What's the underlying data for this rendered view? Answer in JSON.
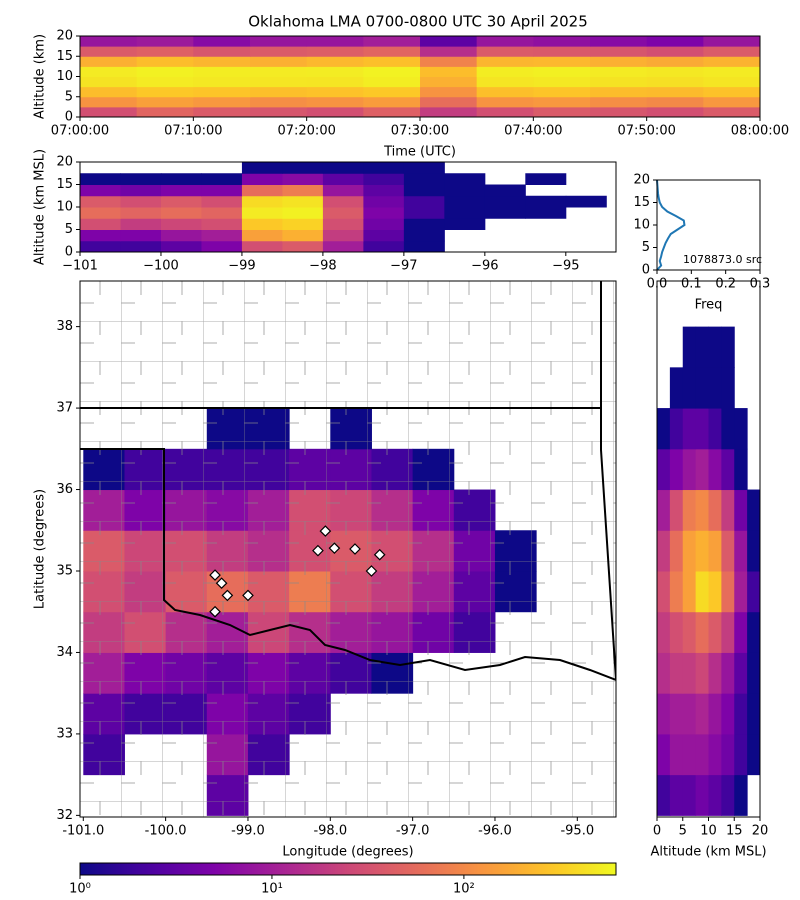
{
  "chart_data": [
    {
      "type": "heatmap",
      "title": "Oklahoma LMA 0700-0800 UTC 30 April 2025",
      "xlabel": "Time (UTC)",
      "ylabel": "Altitude (km)",
      "xlim": [
        "2025-04-30T07:00:00Z",
        "2025-04-30T08:00:00Z"
      ],
      "xticks": [
        {
          "value": "2025-04-30T07:00:00Z",
          "label": "07:00:00"
        },
        {
          "value": "2025-04-30T07:10:00Z",
          "label": "07:10:00"
        },
        {
          "value": "2025-04-30T07:20:00Z",
          "label": "07:20:00"
        },
        {
          "value": "2025-04-30T07:30:00Z",
          "label": "07:30:00"
        },
        {
          "value": "2025-04-30T07:40:00Z",
          "label": "07:40:00"
        },
        {
          "value": "2025-04-30T07:50:00Z",
          "label": "07:50:00"
        },
        {
          "value": "2025-04-30T08:00:00Z",
          "label": "08:00:00"
        }
      ],
      "ylim": [
        0,
        20
      ],
      "yticks": [
        0,
        5,
        10,
        15,
        20
      ],
      "xbins": [
        "2025-04-30T07:00:00Z",
        "2025-04-30T07:05:00Z",
        "2025-04-30T07:10:00Z",
        "2025-04-30T07:15:00Z",
        "2025-04-30T07:20:00Z",
        "2025-04-30T07:25:00Z",
        "2025-04-30T07:30:00Z",
        "2025-04-30T07:35:00Z",
        "2025-04-30T07:40:00Z",
        "2025-04-30T07:45:00Z",
        "2025-04-30T07:50:00Z",
        "2025-04-30T07:55:00Z",
        "2025-04-30T08:00:00Z"
      ],
      "ybins": [
        0,
        2.5,
        5,
        7.5,
        10,
        12.5,
        15,
        17.5,
        20
      ],
      "values": [
        [
          30,
          50,
          40,
          35,
          30,
          45,
          20,
          30,
          40,
          35,
          30,
          40
        ],
        [
          120,
          150,
          130,
          110,
          120,
          140,
          60,
          120,
          130,
          110,
          100,
          130
        ],
        [
          250,
          300,
          280,
          260,
          270,
          300,
          120,
          260,
          280,
          250,
          240,
          270
        ],
        [
          450,
          500,
          480,
          470,
          460,
          520,
          200,
          460,
          480,
          450,
          430,
          460
        ],
        [
          500,
          550,
          520,
          500,
          510,
          560,
          250,
          520,
          540,
          500,
          480,
          500
        ],
        [
          200,
          250,
          220,
          200,
          230,
          260,
          90,
          220,
          230,
          200,
          180,
          210
        ],
        [
          40,
          45,
          35,
          40,
          42,
          50,
          15,
          40,
          38,
          35,
          30,
          40
        ],
        [
          8,
          9,
          6,
          8,
          8,
          10,
          3,
          8,
          7,
          6,
          5,
          8
        ]
      ]
    },
    {
      "type": "heatmap",
      "ylabel": "Altitude (km MSL)",
      "xlim": [
        -101,
        -94.38
      ],
      "xticks": [
        {
          "value": -101,
          "label": "−101"
        },
        {
          "value": -100,
          "label": "−100"
        },
        {
          "value": -99,
          "label": "−99"
        },
        {
          "value": -98,
          "label": "−98"
        },
        {
          "value": -97,
          "label": "−97"
        },
        {
          "value": -96,
          "label": "−96"
        },
        {
          "value": -95,
          "label": "−95"
        }
      ],
      "ylim": [
        0,
        20
      ],
      "yticks": [
        0,
        5,
        10,
        15,
        20
      ],
      "xbins": [
        -101,
        -100.5,
        -100,
        -99.5,
        -99,
        -98.5,
        -98,
        -97.5,
        -97,
        -96.5,
        -96,
        -95.5,
        -95,
        -94.5
      ],
      "ybins": [
        0,
        2.5,
        5,
        7.5,
        10,
        12.5,
        15,
        17.5,
        20
      ],
      "values": [
        [
          2,
          2,
          3,
          5,
          30,
          40,
          10,
          2,
          1,
          null,
          null,
          null,
          null
        ],
        [
          5,
          5,
          8,
          10,
          150,
          200,
          20,
          3,
          1,
          null,
          null,
          null,
          null
        ],
        [
          30,
          20,
          25,
          30,
          300,
          350,
          30,
          4,
          1,
          1,
          null,
          null,
          null
        ],
        [
          60,
          50,
          60,
          50,
          500,
          550,
          40,
          5,
          2,
          1,
          1,
          1,
          null
        ],
        [
          40,
          30,
          40,
          30,
          400,
          450,
          30,
          4,
          2,
          1,
          1,
          1,
          1
        ],
        [
          5,
          4,
          5,
          5,
          60,
          80,
          8,
          3,
          1,
          1,
          1,
          null,
          null
        ],
        [
          1,
          1,
          1,
          1,
          5,
          6,
          3,
          2,
          1,
          1,
          null,
          1,
          null
        ],
        [
          null,
          null,
          null,
          null,
          1,
          1,
          1,
          1,
          1,
          null,
          null,
          null,
          null
        ]
      ]
    },
    {
      "type": "line",
      "xlabel": "Freq",
      "annotation": "1078873.0 src",
      "xlim": [
        0,
        0.3
      ],
      "xticks": [
        {
          "value": 0,
          "label": "0.0"
        },
        0.1,
        0.2,
        0.3
      ],
      "ylim": [
        0,
        20
      ],
      "yticks": [
        0,
        5,
        10,
        15,
        20
      ],
      "series": [
        {
          "color": "#1f77b4",
          "y": [
            0,
            1,
            2,
            3,
            4,
            5,
            6,
            7,
            8,
            9,
            10,
            11,
            12,
            13,
            14,
            15,
            16,
            17,
            18,
            19,
            20
          ],
          "values": [
            0.0,
            0.012,
            0.008,
            0.012,
            0.015,
            0.02,
            0.025,
            0.032,
            0.04,
            0.06,
            0.08,
            0.078,
            0.055,
            0.03,
            0.015,
            0.008,
            0.005,
            0.003,
            0.002,
            0.001,
            0.0
          ]
        }
      ]
    },
    {
      "type": "heatmap",
      "xlabel": "Longitude (degrees)",
      "ylabel": "Latitude (degrees)",
      "xlim": [
        -101.04,
        -94.53
      ],
      "xticks": [
        {
          "value": -101,
          "label": "-101.0"
        },
        {
          "value": -100,
          "label": "-100.0"
        },
        {
          "value": -99,
          "label": "-99.0"
        },
        {
          "value": -98,
          "label": "-98.0"
        },
        {
          "value": -97,
          "label": "-97.0"
        },
        {
          "value": -96,
          "label": "-96.0"
        },
        {
          "value": -95,
          "label": "-95.0"
        }
      ],
      "ylim": [
        31.98,
        38.56
      ],
      "yticks": [
        32,
        33,
        34,
        35,
        36,
        37,
        38
      ],
      "xbins": [
        -101,
        -100.5,
        -100,
        -99.5,
        -99,
        -98.5,
        -98,
        -97.5,
        -97,
        -96.5,
        -96,
        -95.5,
        -95,
        -94.5
      ],
      "ybins": [
        32,
        32.5,
        33,
        33.5,
        34,
        34.5,
        35,
        35.5,
        36,
        36.5,
        37,
        37.5,
        38,
        38.5
      ],
      "values": [
        [
          null,
          null,
          null,
          3,
          null,
          null,
          null,
          null,
          null,
          null,
          null,
          null,
          null
        ],
        [
          2,
          null,
          null,
          8,
          2,
          null,
          null,
          null,
          null,
          null,
          null,
          null,
          null
        ],
        [
          3,
          2,
          2,
          5,
          3,
          2,
          null,
          null,
          null,
          null,
          null,
          null,
          null
        ],
        [
          10,
          5,
          4,
          3,
          5,
          3,
          2,
          1,
          null,
          null,
          null,
          null,
          null
        ],
        [
          20,
          30,
          15,
          10,
          25,
          15,
          10,
          8,
          4,
          2,
          null,
          null,
          null
        ],
        [
          30,
          20,
          40,
          60,
          40,
          80,
          30,
          20,
          10,
          3,
          1,
          null,
          null
        ],
        [
          40,
          25,
          30,
          20,
          15,
          30,
          40,
          30,
          15,
          4,
          1,
          null,
          null
        ],
        [
          10,
          5,
          8,
          6,
          10,
          30,
          25,
          15,
          5,
          2,
          null,
          null,
          null
        ],
        [
          1,
          2,
          2,
          2,
          2,
          3,
          3,
          2,
          1,
          null,
          null,
          null,
          null
        ],
        [
          null,
          null,
          null,
          1,
          1,
          null,
          1,
          null,
          null,
          null,
          null,
          null,
          null
        ],
        [
          null,
          null,
          null,
          null,
          null,
          null,
          null,
          null,
          null,
          null,
          null,
          null,
          null
        ],
        [
          null,
          null,
          null,
          null,
          null,
          null,
          null,
          null,
          null,
          null,
          null,
          null,
          null
        ],
        [
          null,
          null,
          null,
          null,
          null,
          null,
          null,
          null,
          null,
          null,
          null,
          null,
          null
        ]
      ],
      "points": {
        "color": "#ffffff",
        "x": [
          -98.06,
          -98.15,
          -97.95,
          -97.7,
          -97.4,
          -97.5,
          -99.4,
          -99.32,
          -99.25,
          -99.0,
          -99.4
        ],
        "y": [
          35.49,
          35.25,
          35.28,
          35.27,
          35.2,
          35.0,
          34.95,
          34.85,
          34.7,
          34.7,
          34.5
        ]
      }
    },
    {
      "type": "heatmap",
      "xlabel": "Altitude (km MSL)",
      "xlim": [
        0,
        20
      ],
      "xticks": [
        0,
        5,
        10,
        15,
        20
      ],
      "ylim": [
        31.98,
        38.56
      ],
      "xbins": [
        0,
        2.5,
        5,
        7.5,
        10,
        12.5,
        15,
        17.5,
        20
      ],
      "ybins": [
        32,
        32.5,
        33,
        33.5,
        34,
        34.5,
        35,
        35.5,
        36,
        36.5,
        37,
        37.5,
        38,
        38.5
      ],
      "values": [
        [
          2,
          3,
          3,
          4,
          3,
          2,
          1,
          null
        ],
        [
          5,
          8,
          8,
          8,
          6,
          4,
          2,
          1
        ],
        [
          8,
          10,
          10,
          12,
          8,
          5,
          2,
          1
        ],
        [
          15,
          20,
          20,
          25,
          15,
          8,
          3,
          1
        ],
        [
          20,
          30,
          40,
          60,
          40,
          20,
          5,
          1
        ],
        [
          30,
          80,
          150,
          400,
          300,
          60,
          10,
          2
        ],
        [
          20,
          60,
          150,
          200,
          150,
          40,
          8,
          1
        ],
        [
          10,
          30,
          80,
          100,
          60,
          20,
          4,
          1
        ],
        [
          3,
          5,
          8,
          10,
          6,
          3,
          1,
          null
        ],
        [
          1,
          2,
          3,
          3,
          2,
          1,
          1,
          null
        ],
        [
          null,
          1,
          1,
          1,
          1,
          1,
          null,
          null
        ],
        [
          null,
          null,
          1,
          1,
          1,
          1,
          null,
          null
        ],
        [
          null,
          null,
          null,
          null,
          null,
          null,
          null,
          null
        ]
      ]
    },
    {
      "type": "colorbar",
      "log": true,
      "xlim": [
        1,
        620
      ],
      "xticks": [
        {
          "value": 1,
          "label": "10⁰"
        },
        {
          "value": 10,
          "label": "10¹"
        },
        {
          "value": 100,
          "label": "10²"
        }
      ]
    }
  ]
}
